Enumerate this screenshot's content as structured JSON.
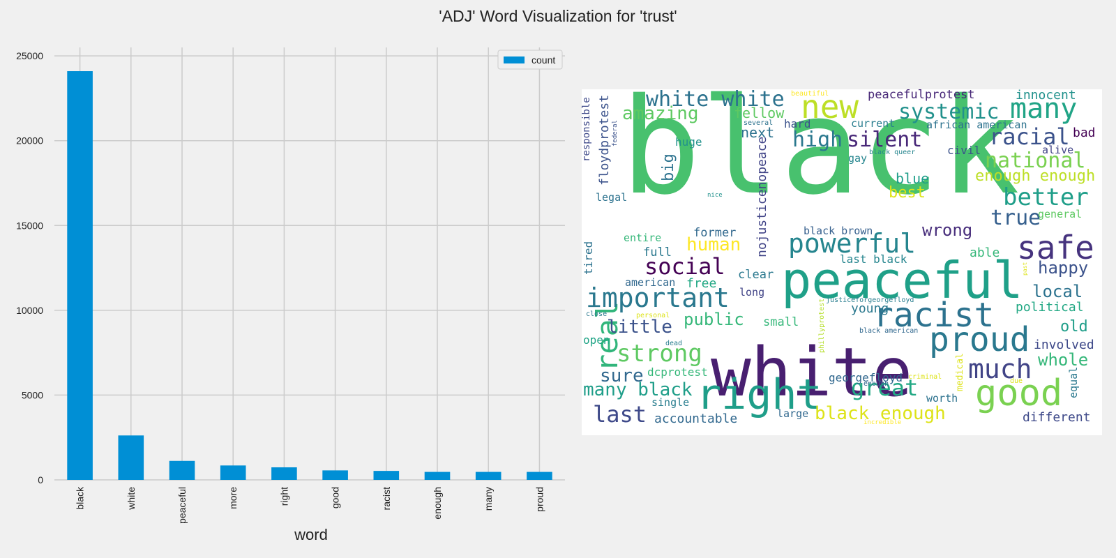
{
  "title": "'ADJ' Word Visualization for 'trust'",
  "chart_data": [
    {
      "type": "bar",
      "categories": [
        "black",
        "white",
        "peaceful",
        "more",
        "right",
        "good",
        "racist",
        "enough",
        "many",
        "proud"
      ],
      "series": [
        {
          "name": "count",
          "values": [
            24100,
            2620,
            1120,
            850,
            740,
            560,
            530,
            470,
            470,
            470
          ],
          "color": "#008fd5"
        }
      ],
      "xlabel": "word",
      "ylabel": "",
      "ylim": [
        0,
        25500
      ],
      "yticks": [
        0,
        5000,
        10000,
        15000,
        20000,
        25000
      ],
      "grid": true,
      "legend": "top-right"
    },
    {
      "type": "wordcloud",
      "words": [
        {
          "text": "black",
          "size": 190,
          "color": "#48c16e"
        },
        {
          "text": "white",
          "size": 96,
          "color": "#481f70"
        },
        {
          "text": "peaceful",
          "size": 72,
          "color": "#1fa088"
        },
        {
          "text": "right",
          "size": 60,
          "color": "#1f9e89"
        },
        {
          "text": "good",
          "size": 52,
          "color": "#7ad151"
        },
        {
          "text": "racist",
          "size": 48,
          "color": "#2c728e"
        },
        {
          "text": "proud",
          "size": 48,
          "color": "#2a788e"
        },
        {
          "text": "new",
          "size": 46,
          "color": "#bddf26"
        },
        {
          "text": "safe",
          "size": 46,
          "color": "#46337e"
        },
        {
          "text": "many",
          "size": 40,
          "color": "#20a486"
        },
        {
          "text": "real",
          "size": 42,
          "color": "#31b57b",
          "rotate": true
        },
        {
          "text": "important",
          "size": 38,
          "color": "#2a788e"
        },
        {
          "text": "powerful",
          "size": 38,
          "color": "#25858e"
        },
        {
          "text": "much",
          "size": 38,
          "color": "#414487"
        },
        {
          "text": "strong",
          "size": 34,
          "color": "#5ec962"
        },
        {
          "text": "better",
          "size": 34,
          "color": "#1f9e89"
        },
        {
          "text": "social",
          "size": 32,
          "color": "#440154"
        },
        {
          "text": "racial",
          "size": 32,
          "color": "#3b528b"
        },
        {
          "text": "white white",
          "size": 30,
          "color": "#2c728e"
        },
        {
          "text": "systemic",
          "size": 30,
          "color": "#21918c"
        },
        {
          "text": "national",
          "size": 30,
          "color": "#7ad151"
        },
        {
          "text": "great",
          "size": 32,
          "color": "#22a884"
        },
        {
          "text": "true",
          "size": 30,
          "color": "#355f8d"
        },
        {
          "text": "silent",
          "size": 30,
          "color": "#482878"
        },
        {
          "text": "high",
          "size": 30,
          "color": "#2a788e"
        },
        {
          "text": "last",
          "size": 32,
          "color": "#3e4989"
        },
        {
          "text": "sure",
          "size": 26,
          "color": "#31688e"
        },
        {
          "text": "amazing",
          "size": 26,
          "color": "#5ec962"
        },
        {
          "text": "human",
          "size": 26,
          "color": "#fde725"
        },
        {
          "text": "little",
          "size": 26,
          "color": "#3b528b"
        },
        {
          "text": "many black",
          "size": 26,
          "color": "#1f9e89"
        },
        {
          "text": "black enough",
          "size": 26,
          "color": "#dde318"
        },
        {
          "text": "public",
          "size": 24,
          "color": "#35b779"
        },
        {
          "text": "wrong",
          "size": 24,
          "color": "#472d7b"
        },
        {
          "text": "happy",
          "size": 24,
          "color": "#3b528b"
        },
        {
          "text": "local",
          "size": 24,
          "color": "#2c728e"
        },
        {
          "text": "whole",
          "size": 24,
          "color": "#35b779"
        },
        {
          "text": "old",
          "size": 22,
          "color": "#1f9e89"
        },
        {
          "text": "enough enough",
          "size": 22,
          "color": "#bddf26"
        },
        {
          "text": "best",
          "size": 22,
          "color": "#dde318"
        },
        {
          "text": "blue",
          "size": 20,
          "color": "#1f9e89"
        },
        {
          "text": "big",
          "size": 22,
          "color": "#2c728e",
          "rotate": true
        },
        {
          "text": "floydprotest",
          "size": 18,
          "color": "#3b528b",
          "rotate": true
        },
        {
          "text": "nojusticenopeace",
          "size": 18,
          "color": "#414487",
          "rotate": true
        },
        {
          "text": "fellow",
          "size": 20,
          "color": "#5ec962"
        },
        {
          "text": "next",
          "size": 20,
          "color": "#2c728e"
        },
        {
          "text": "peacefulprotest",
          "size": 17,
          "color": "#482878"
        },
        {
          "text": "innocent",
          "size": 18,
          "color": "#21918c"
        },
        {
          "text": "bad",
          "size": 18,
          "color": "#440154"
        },
        {
          "text": "political",
          "size": 18,
          "color": "#22a884"
        },
        {
          "text": "involved",
          "size": 18,
          "color": "#3e4989"
        },
        {
          "text": "different",
          "size": 18,
          "color": "#3e4989"
        },
        {
          "text": "able",
          "size": 18,
          "color": "#35b779"
        },
        {
          "text": "accountable",
          "size": 18,
          "color": "#31688e"
        },
        {
          "text": "clear",
          "size": 17,
          "color": "#2a788e"
        },
        {
          "text": "full",
          "size": 17,
          "color": "#2a788e"
        },
        {
          "text": "former",
          "size": 17,
          "color": "#31688e"
        },
        {
          "text": "free",
          "size": 18,
          "color": "#22a884"
        },
        {
          "text": "young",
          "size": 18,
          "color": "#2a788e"
        },
        {
          "text": "small",
          "size": 17,
          "color": "#35b779"
        },
        {
          "text": "georgefloyd",
          "size": 16,
          "color": "#31688e"
        },
        {
          "text": "last black",
          "size": 16,
          "color": "#25858e"
        },
        {
          "text": "black brown",
          "size": 15,
          "color": "#355f8d"
        },
        {
          "text": "open",
          "size": 16,
          "color": "#20a486"
        },
        {
          "text": "dcprotest",
          "size": 16,
          "color": "#35b779"
        },
        {
          "text": "single",
          "size": 15,
          "color": "#287d8e"
        },
        {
          "text": "large",
          "size": 15,
          "color": "#31688e"
        },
        {
          "text": "worth",
          "size": 15,
          "color": "#2c728e"
        },
        {
          "text": "civil",
          "size": 16,
          "color": "#3b528b"
        },
        {
          "text": "gay",
          "size": 15,
          "color": "#25858e"
        },
        {
          "text": "huge",
          "size": 16,
          "color": "#21918c"
        },
        {
          "text": "hard",
          "size": 16,
          "color": "#3b528b"
        },
        {
          "text": "current",
          "size": 15,
          "color": "#287d8e"
        },
        {
          "text": "african american",
          "size": 15,
          "color": "#2c728e"
        },
        {
          "text": "alive",
          "size": 15,
          "color": "#414487"
        },
        {
          "text": "general",
          "size": 15,
          "color": "#5ec962"
        },
        {
          "text": "equal",
          "size": 15,
          "color": "#2a788e",
          "rotate": true
        },
        {
          "text": "legal",
          "size": 15,
          "color": "#2c728e"
        },
        {
          "text": "entire",
          "size": 15,
          "color": "#35b779"
        },
        {
          "text": "american",
          "size": 15,
          "color": "#31688e"
        },
        {
          "text": "long",
          "size": 15,
          "color": "#414487"
        },
        {
          "text": "tired",
          "size": 16,
          "color": "#2c728e",
          "rotate": true
        },
        {
          "text": "responsible",
          "size": 14,
          "color": "#3e4989",
          "rotate": true
        },
        {
          "text": "medical",
          "size": 13,
          "color": "#dde318",
          "rotate": true
        },
        {
          "text": "justiceforgeorgefloyd",
          "size": 10,
          "color": "#287d8e"
        },
        {
          "text": "black american",
          "size": 10,
          "color": "#31688e"
        },
        {
          "text": "black queer",
          "size": 10,
          "color": "#25858e"
        },
        {
          "text": "phillyprotest",
          "size": 10,
          "color": "#b5de2b",
          "rotate": true
        },
        {
          "text": "beautiful",
          "size": 10,
          "color": "#fde725"
        },
        {
          "text": "several",
          "size": 10,
          "color": "#2c728e"
        },
        {
          "text": "federal",
          "size": 9,
          "color": "#3b528b",
          "rotate": true
        },
        {
          "text": "nice",
          "size": 9,
          "color": "#21918c"
        },
        {
          "text": "close",
          "size": 10,
          "color": "#2a788e"
        },
        {
          "text": "personal",
          "size": 10,
          "color": "#dde318"
        },
        {
          "text": "dead",
          "size": 10,
          "color": "#287d8e"
        },
        {
          "text": "criminal",
          "size": 10,
          "color": "#dde318"
        },
        {
          "text": "enough",
          "size": 10,
          "color": "#31688e"
        },
        {
          "text": "due",
          "size": 10,
          "color": "#dde318"
        },
        {
          "text": "incredible",
          "size": 9,
          "color": "#fde725"
        },
        {
          "text": "past",
          "size": 8,
          "color": "#dde318",
          "rotate": true
        }
      ]
    }
  ]
}
